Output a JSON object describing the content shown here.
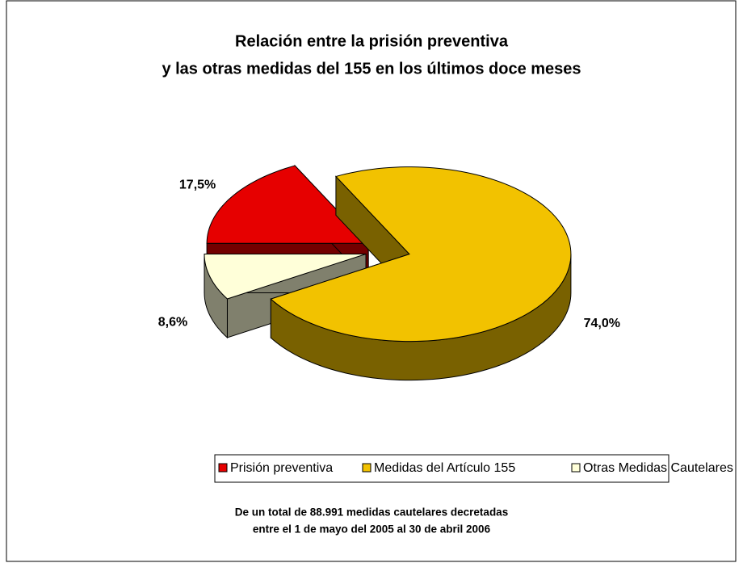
{
  "chart_data": {
    "type": "pie",
    "title": [
      "Relación entre la prisión preventiva",
      "y las otras medidas del 155 en los últimos doce meses"
    ],
    "categories": [
      "Prisión preventiva",
      "Medidas del Artículo 155",
      "Otras Medidas Cautelares"
    ],
    "values": [
      17.5,
      74.0,
      8.6
    ],
    "value_labels": [
      "17,5%",
      "74,0%",
      "8,6%"
    ],
    "colors": [
      "#e60000",
      "#f2c200",
      "#ffffd9"
    ],
    "legend": "bottom",
    "annotations": [
      "De un total de 88.991 medidas cautelares decretadas",
      "entre el 1 de mayo del 2005 al 30 de abril 2006"
    ]
  }
}
